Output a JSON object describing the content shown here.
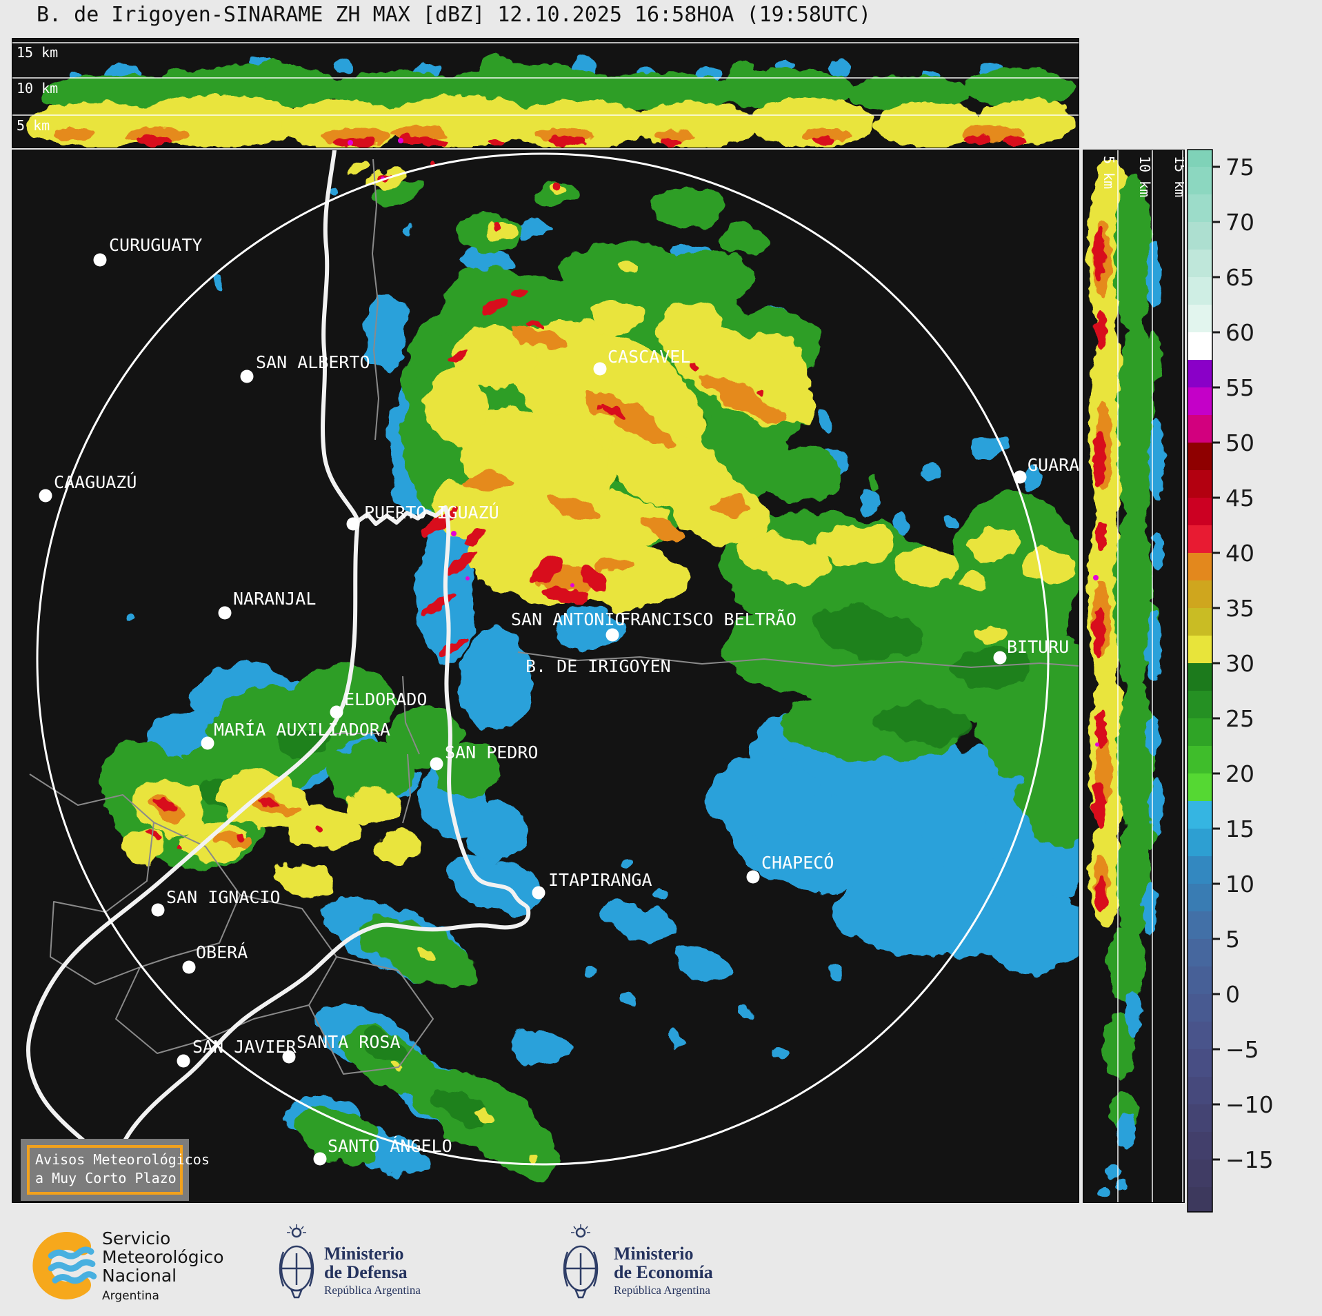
{
  "title": "B. de Irigoyen-SINARAME ZH MAX [dBZ] 12.10.2025 16:58HOA (19:58UTC)",
  "panels": {
    "top_xsection": {
      "height_labels": [
        "15 km",
        "10 km",
        "5 km"
      ]
    },
    "right_xsection": {
      "height_labels": [
        "5 km",
        "10 km",
        "15 km"
      ]
    }
  },
  "colorbar": {
    "unit": "dBZ",
    "ticks": [
      75,
      70,
      65,
      60,
      55,
      50,
      45,
      40,
      35,
      30,
      25,
      20,
      15,
      10,
      5,
      0,
      -5,
      -10,
      -15
    ],
    "band_top_value": 77.5,
    "band_step": 2.5,
    "band_colors": [
      "#7fd2b8",
      "#8cd7c0",
      "#9cdcc9",
      "#addfd0",
      "#bfe7da",
      "#cfeee4",
      "#e2f5ee",
      "#ffffff",
      "#8a00c8",
      "#c400c8",
      "#d2007e",
      "#8f0000",
      "#b30010",
      "#cc0022",
      "#e81b32",
      "#e3881d",
      "#cfa61e",
      "#c9bc24",
      "#e8e43a",
      "#1c7a1c",
      "#259023",
      "#2fa426",
      "#3fbd2b",
      "#55d833",
      "#35b5e2",
      "#2d9fd2",
      "#3388c0",
      "#397cb3",
      "#4270a7",
      "#46679e",
      "#476097",
      "#485a91",
      "#49548b",
      "#484e84",
      "#46497c",
      "#444473",
      "#423f6b",
      "#403c64",
      "#3d395d"
    ]
  },
  "map": {
    "cities": [
      {
        "label": "CURUGUATY",
        "dot": [
          127,
          159
        ],
        "text": [
          140,
          146
        ]
      },
      {
        "label": "SAN ALBERTO",
        "dot": [
          340,
          328
        ],
        "text": [
          353,
          316
        ]
      },
      {
        "label": "CAAGUAZÚ",
        "dot": [
          48,
          501
        ],
        "text": [
          60,
          490
        ]
      },
      {
        "label": "PUERTO IGUAZÚ",
        "dot": [
          494,
          542
        ],
        "text": [
          510,
          534
        ]
      },
      {
        "label": "NARANJAL",
        "dot": [
          308,
          671
        ],
        "text": [
          320,
          659
        ]
      },
      {
        "label": "CASCAVEL",
        "dot": [
          852,
          317
        ],
        "text": [
          863,
          308
        ]
      },
      {
        "label": "SAN ANTONIO",
        "dot": null,
        "text": [
          723,
          689
        ]
      },
      {
        "label": "FRANCISCO BELTRÃO",
        "dot": [
          870,
          703
        ],
        "text": [
          881,
          689
        ]
      },
      {
        "label": "B. DE IRIGOYEN",
        "dot": null,
        "text": [
          744,
          757
        ]
      },
      {
        "label": "GUARA",
        "dot": [
          1461,
          474
        ],
        "text": [
          1472,
          465
        ]
      },
      {
        "label": "BITURU",
        "dot": [
          1432,
          736
        ],
        "text": [
          1442,
          729
        ]
      },
      {
        "label": "ELDORADO",
        "dot": [
          470,
          815
        ],
        "text": [
          481,
          805
        ]
      },
      {
        "label": "MARÍA AUXILIADORA",
        "dot": [
          283,
          860
        ],
        "text": [
          292,
          849
        ]
      },
      {
        "label": "SAN PEDRO",
        "dot": [
          615,
          890
        ],
        "text": [
          627,
          882
        ]
      },
      {
        "label": "CHAPECÓ",
        "dot": [
          1074,
          1054
        ],
        "text": [
          1086,
          1042
        ]
      },
      {
        "label": "ITAPIRANGA",
        "dot": [
          763,
          1077
        ],
        "text": [
          777,
          1067
        ]
      },
      {
        "label": "SAN IGNACIO",
        "dot": [
          211,
          1102
        ],
        "text": [
          223,
          1092
        ]
      },
      {
        "label": "OBERÁ",
        "dot": [
          256,
          1185
        ],
        "text": [
          266,
          1172
        ]
      },
      {
        "label": "SAN JAVIER",
        "dot": [
          248,
          1321
        ],
        "text": [
          261,
          1309
        ]
      },
      {
        "label": "SANTA ROSA",
        "dot": [
          401,
          1315
        ],
        "text": [
          412,
          1302
        ]
      },
      {
        "label": "SANTO ÁNGELO",
        "dot": [
          446,
          1463
        ],
        "text": [
          457,
          1453
        ]
      }
    ]
  },
  "warning_box": {
    "line1": "Avisos Meteorológicos",
    "line2": "a Muy Corto Plazo"
  },
  "footer": {
    "smn": {
      "line1": "Servicio",
      "line2": "Meteorológico",
      "line3": "Nacional",
      "country": "Argentina"
    },
    "defensa": {
      "line1": "Ministerio",
      "line2": "de Defensa",
      "subtitle": "República Argentina"
    },
    "economia": {
      "line1": "Ministerio",
      "line2": "de Economía",
      "subtitle": "República Argentina"
    }
  }
}
